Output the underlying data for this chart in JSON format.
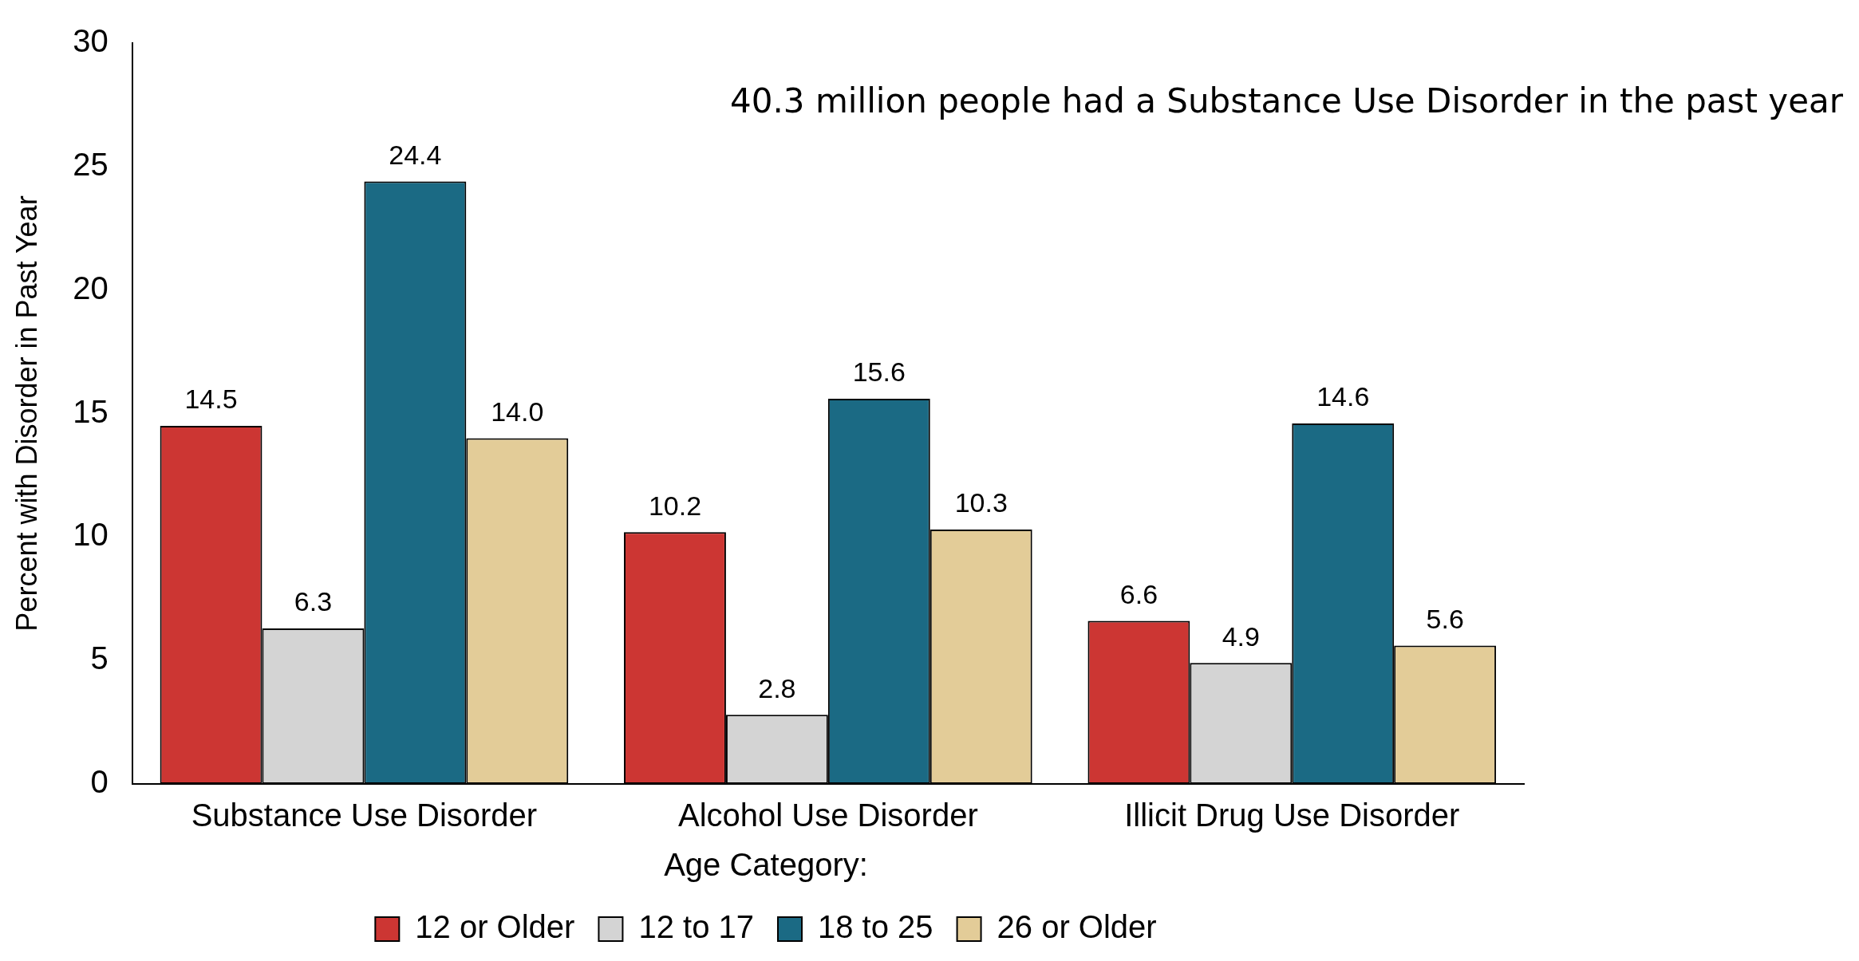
{
  "chart_data": {
    "type": "bar",
    "ylabel": "Percent with Disorder in Past Year",
    "legend_title": "Age Category:",
    "categories": [
      "Substance Use Disorder",
      "Alcohol Use Disorder",
      "Illicit Drug Use Disorder"
    ],
    "series": [
      {
        "name": "12 or Older",
        "color": "#cc3633",
        "values": [
          14.5,
          10.2,
          6.6
        ],
        "value_labels": [
          "14.5",
          "10.2",
          "6.6"
        ]
      },
      {
        "name": "12 to 17",
        "color": "#d4d4d4",
        "values": [
          6.3,
          2.8,
          4.9
        ],
        "value_labels": [
          "6.3",
          "2.8",
          "4.9"
        ]
      },
      {
        "name": "18 to 25",
        "color": "#1b6a84",
        "values": [
          24.4,
          15.6,
          14.6
        ],
        "value_labels": [
          "24.4",
          "15.6",
          "14.6"
        ]
      },
      {
        "name": "26 or Older",
        "color": "#e3cc98",
        "values": [
          14.0,
          10.3,
          5.6
        ],
        "value_labels": [
          "14.0",
          "10.3",
          "5.6"
        ]
      }
    ],
    "ylim": [
      0,
      30
    ],
    "yticks": [
      0,
      5,
      10,
      15,
      20,
      25,
      30
    ],
    "grid": false,
    "legend": "bottom",
    "annotations": [
      "40.3 million people had a Substance Use Disorder in the past year"
    ]
  }
}
